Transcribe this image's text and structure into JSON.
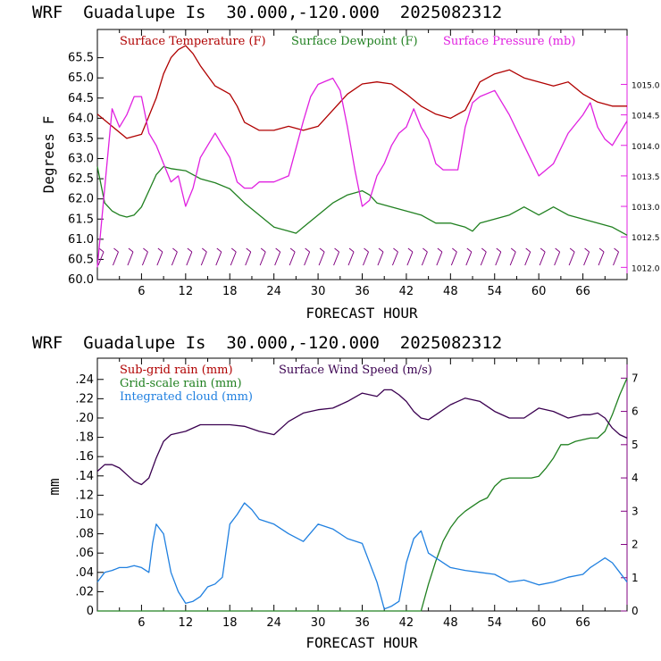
{
  "chart_data": [
    {
      "type": "line",
      "title": "WRF  Guadalupe Is  30.000,-120.000  2025082312",
      "xlabel": "FORECAST HOUR",
      "ylabel": "Degrees F",
      "xlim": [
        0,
        72
      ],
      "ylim": [
        60.0,
        66.2
      ],
      "xticks": [
        "6",
        "12",
        "18",
        "24",
        "30",
        "36",
        "42",
        "48",
        "54",
        "60",
        "66"
      ],
      "yticks": [
        "60.0",
        "60.5",
        "61.0",
        "61.5",
        "62.0",
        "62.5",
        "63.0",
        "63.5",
        "64.0",
        "64.5",
        "65.0",
        "65.5"
      ],
      "right_axis": {
        "label_ticks": [
          "1012.0",
          "1012.5",
          "1013.0",
          "1013.5",
          "1014.0",
          "1014.5",
          "1015.0"
        ],
        "ylim": [
          1011.8,
          1015.9
        ]
      },
      "wind_barbs": "present along bottom",
      "legend_position": "top",
      "series": [
        {
          "name": "Surface Temperature (F)",
          "color": "#b00000",
          "x": [
            0,
            2,
            4,
            6,
            8,
            9,
            10,
            11,
            12,
            13,
            14,
            16,
            18,
            19,
            20,
            22,
            24,
            26,
            28,
            30,
            32,
            34,
            36,
            38,
            40,
            42,
            44,
            46,
            48,
            50,
            52,
            54,
            56,
            58,
            60,
            62,
            64,
            66,
            68,
            70,
            72
          ],
          "y": [
            64.1,
            63.8,
            63.5,
            63.6,
            64.5,
            65.1,
            65.5,
            65.7,
            65.8,
            65.6,
            65.3,
            64.8,
            64.6,
            64.3,
            63.9,
            63.7,
            63.7,
            63.8,
            63.7,
            63.8,
            64.2,
            64.6,
            64.85,
            64.9,
            64.85,
            64.6,
            64.3,
            64.1,
            64.0,
            64.2,
            64.9,
            65.1,
            65.2,
            65.0,
            64.9,
            64.8,
            64.9,
            64.6,
            64.4,
            64.3,
            64.3
          ]
        },
        {
          "name": "Surface Dewpoint (F)",
          "color": "#208020",
          "x": [
            0,
            1,
            2,
            3,
            4,
            5,
            6,
            7,
            8,
            9,
            10,
            12,
            14,
            16,
            18,
            20,
            22,
            24,
            26,
            27,
            28,
            30,
            32,
            34,
            36,
            37,
            38,
            40,
            42,
            44,
            46,
            48,
            50,
            51,
            52,
            54,
            56,
            58,
            60,
            62,
            64,
            66,
            68,
            70,
            72
          ],
          "y": [
            62.8,
            61.9,
            61.7,
            61.6,
            61.55,
            61.6,
            61.8,
            62.2,
            62.6,
            62.8,
            62.75,
            62.7,
            62.5,
            62.4,
            62.25,
            61.9,
            61.6,
            61.3,
            61.2,
            61.15,
            61.3,
            61.6,
            61.9,
            62.1,
            62.2,
            62.1,
            61.9,
            61.8,
            61.7,
            61.6,
            61.4,
            61.4,
            61.3,
            61.2,
            61.4,
            61.5,
            61.6,
            61.8,
            61.6,
            61.8,
            61.6,
            61.5,
            61.4,
            61.3,
            61.1
          ]
        },
        {
          "name": "Surface Pressure (mb)",
          "color": "#e020e0",
          "x": [
            0,
            1,
            2,
            3,
            4,
            5,
            6,
            7,
            8,
            9,
            10,
            11,
            12,
            13,
            14,
            15,
            16,
            17,
            18,
            19,
            20,
            21,
            22,
            24,
            26,
            28,
            29,
            30,
            31,
            32,
            33,
            34,
            35,
            36,
            37,
            38,
            39,
            40,
            41,
            42,
            43,
            44,
            45,
            46,
            47,
            48,
            49,
            50,
            51,
            52,
            54,
            56,
            58,
            60,
            62,
            64,
            66,
            67,
            68,
            69,
            70,
            71,
            72
          ],
          "y": [
            1012.0,
            1013.3,
            1014.6,
            1014.3,
            1014.5,
            1014.8,
            1014.8,
            1014.2,
            1014.0,
            1013.7,
            1013.4,
            1013.5,
            1013.0,
            1013.3,
            1013.8,
            1014.0,
            1014.2,
            1014.0,
            1013.8,
            1013.4,
            1013.3,
            1013.3,
            1013.4,
            1013.4,
            1013.5,
            1014.4,
            1014.8,
            1015.0,
            1015.05,
            1015.1,
            1014.9,
            1014.3,
            1013.6,
            1013.0,
            1013.1,
            1013.5,
            1013.7,
            1014.0,
            1014.2,
            1014.3,
            1014.6,
            1014.3,
            1014.1,
            1013.7,
            1013.6,
            1013.6,
            1013.6,
            1014.3,
            1014.7,
            1014.8,
            1014.9,
            1014.5,
            1014.0,
            1013.5,
            1013.7,
            1014.2,
            1014.5,
            1014.7,
            1014.3,
            1014.1,
            1014.0,
            1014.2,
            1014.4
          ]
        }
      ]
    },
    {
      "type": "line",
      "title": "WRF  Guadalupe Is  30.000,-120.000  2025082312",
      "xlabel": "FORECAST HOUR",
      "ylabel": "mm",
      "xlim": [
        0,
        72
      ],
      "ylim": [
        0,
        0.262
      ],
      "xticks": [
        "6",
        "12",
        "18",
        "24",
        "30",
        "36",
        "42",
        "48",
        "54",
        "60",
        "66"
      ],
      "yticks": [
        "0",
        ".02",
        ".04",
        ".06",
        ".08",
        ".10",
        ".12",
        ".14",
        ".16",
        ".18",
        ".20",
        ".22",
        ".24"
      ],
      "right_axis": {
        "label_ticks": [
          "0",
          "1",
          "2",
          "3",
          "4",
          "5",
          "6",
          "7"
        ],
        "ylim": [
          0,
          7.6
        ]
      },
      "legend_position": "top-left",
      "series": [
        {
          "name": "Sub-grid rain (mm)",
          "color": "#b00000",
          "x": [],
          "y": []
        },
        {
          "name": "Grid-scale rain (mm)",
          "color": "#208020",
          "x": [
            0,
            43.5,
            44,
            45,
            46,
            47,
            48,
            49,
            50,
            51,
            52,
            53,
            54,
            55,
            56,
            57,
            58,
            59,
            60,
            61,
            62,
            63,
            64,
            65,
            66,
            67,
            68,
            69,
            70,
            71,
            72
          ],
          "y": [
            0,
            0,
            0.0,
            0.8,
            1.5,
            2.1,
            2.5,
            2.8,
            3.0,
            3.15,
            3.3,
            3.4,
            3.75,
            3.95,
            4.0,
            4.0,
            4.0,
            4.0,
            4.05,
            4.3,
            4.6,
            5.0,
            5.0,
            5.1,
            5.15,
            5.2,
            5.2,
            5.4,
            5.9,
            6.5,
            7.0
          ]
        },
        {
          "name": "Integrated cloud (mm)",
          "color": "#2080e0",
          "x": [
            0,
            1,
            2,
            3,
            4,
            5,
            6,
            7,
            7.5,
            8,
            9,
            10,
            11,
            12,
            13,
            14,
            15,
            16,
            17,
            18,
            19,
            20,
            21,
            22,
            24,
            26,
            28,
            30,
            32,
            34,
            36,
            38,
            39,
            40,
            41,
            42,
            43,
            44,
            45,
            46,
            48,
            50,
            52,
            54,
            56,
            58,
            60,
            62,
            64,
            66,
            67,
            68,
            69,
            70,
            71,
            72
          ],
          "y": [
            0.03,
            0.04,
            0.042,
            0.045,
            0.045,
            0.047,
            0.045,
            0.04,
            0.07,
            0.09,
            0.08,
            0.04,
            0.02,
            0.008,
            0.01,
            0.015,
            0.025,
            0.028,
            0.035,
            0.09,
            0.1,
            0.112,
            0.105,
            0.095,
            0.09,
            0.08,
            0.072,
            0.09,
            0.085,
            0.075,
            0.07,
            0.03,
            0.002,
            0.005,
            0.01,
            0.05,
            0.075,
            0.083,
            0.06,
            0.055,
            0.045,
            0.042,
            0.04,
            0.038,
            0.03,
            0.032,
            0.027,
            0.03,
            0.035,
            0.038,
            0.045,
            0.05,
            0.055,
            0.05,
            0.04,
            0.03
          ]
        },
        {
          "name": "Surface Wind Speed (m/s)",
          "color": "#3a0050",
          "x": [
            0,
            1,
            2,
            3,
            4,
            5,
            6,
            7,
            8,
            9,
            10,
            12,
            14,
            16,
            18,
            20,
            22,
            24,
            26,
            28,
            30,
            32,
            34,
            36,
            38,
            39,
            40,
            41,
            42,
            43,
            44,
            45,
            46,
            48,
            50,
            52,
            54,
            56,
            58,
            60,
            62,
            64,
            66,
            67,
            68,
            69,
            70,
            71,
            72
          ],
          "y": [
            4.2,
            4.4,
            4.4,
            4.3,
            4.1,
            3.9,
            3.8,
            4.0,
            4.6,
            5.1,
            5.3,
            5.4,
            5.6,
            5.6,
            5.6,
            5.55,
            5.4,
            5.3,
            5.7,
            5.95,
            6.05,
            6.1,
            6.3,
            6.55,
            6.45,
            6.65,
            6.65,
            6.5,
            6.3,
            6.0,
            5.8,
            5.75,
            5.9,
            6.2,
            6.4,
            6.3,
            6.0,
            5.8,
            5.8,
            6.1,
            6.0,
            5.8,
            5.9,
            5.9,
            5.95,
            5.8,
            5.5,
            5.3,
            5.2
          ]
        }
      ]
    }
  ]
}
